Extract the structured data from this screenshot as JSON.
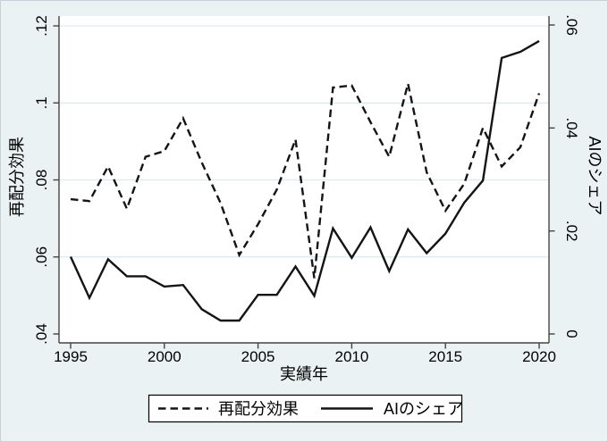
{
  "figure": {
    "background_color": "#EAF2F3",
    "plot_background_color": "#FFFFFF",
    "grid_color": "#DDE9EF",
    "axis_color": "#444444",
    "line_color": "#141414"
  },
  "axes": {
    "x": {
      "title": "実績年",
      "tick_labels": [
        "1995",
        "2000",
        "2005",
        "2010",
        "2015",
        "2020"
      ],
      "tick_values": [
        1995,
        2000,
        2005,
        2010,
        2015,
        2020
      ],
      "range": [
        1995,
        2020
      ]
    },
    "y_left": {
      "title": "再配分効果",
      "tick_labels": [
        ".04",
        ".06",
        ".08",
        ".1",
        ".12"
      ],
      "tick_values": [
        0.04,
        0.06,
        0.08,
        0.1,
        0.12
      ],
      "grid_values": [
        0.06,
        0.08,
        0.1,
        0.12
      ],
      "range": [
        0.04,
        0.12
      ]
    },
    "y_right": {
      "title": "AIのシェア",
      "tick_labels": [
        "0",
        ".02",
        ".04",
        ".06"
      ],
      "tick_values": [
        0,
        0.02,
        0.04,
        0.06
      ],
      "range": [
        0,
        0.06
      ]
    }
  },
  "legend": {
    "items": [
      {
        "label": "再配分効果",
        "style": "dashed"
      },
      {
        "label": "AIのシェア",
        "style": "solid"
      }
    ]
  },
  "chart_data": {
    "type": "line",
    "title": "",
    "xlabel": "実績年",
    "ylabel_left": "再配分効果",
    "ylabel_right": "AIのシェア",
    "x": [
      1995,
      1996,
      1997,
      1998,
      1999,
      2000,
      2001,
      2002,
      2003,
      2004,
      2005,
      2006,
      2007,
      2008,
      2009,
      2010,
      2011,
      2012,
      2013,
      2014,
      2015,
      2016,
      2017,
      2018,
      2019,
      2020
    ],
    "series": [
      {
        "name": "再配分効果",
        "axis": "left",
        "style": "dashed",
        "values": [
          0.075,
          0.0745,
          0.0835,
          0.0725,
          0.086,
          0.0875,
          0.096,
          0.0845,
          0.074,
          0.0605,
          0.0685,
          0.0775,
          0.0905,
          0.0545,
          0.104,
          0.1045,
          0.095,
          0.086,
          0.105,
          0.082,
          0.072,
          0.079,
          0.0935,
          0.0835,
          0.0885,
          0.1025
        ]
      },
      {
        "name": "AIのシェア",
        "axis": "right",
        "style": "solid",
        "values": [
          0.015,
          0.007,
          0.0145,
          0.0112,
          0.0112,
          0.0092,
          0.0095,
          0.0048,
          0.0026,
          0.0026,
          0.0076,
          0.0076,
          0.0131,
          0.0074,
          0.0205,
          0.0148,
          0.0207,
          0.0122,
          0.0203,
          0.0157,
          0.0195,
          0.0255,
          0.0298,
          0.0536,
          0.0548,
          0.0569
        ]
      }
    ],
    "ylim_left": [
      0.04,
      0.12
    ],
    "ylim_right": [
      0,
      0.06
    ],
    "xlim": [
      1995,
      2020
    ],
    "grid": "horizontal-left-axis-ticks",
    "legend_position": "bottom-center"
  }
}
